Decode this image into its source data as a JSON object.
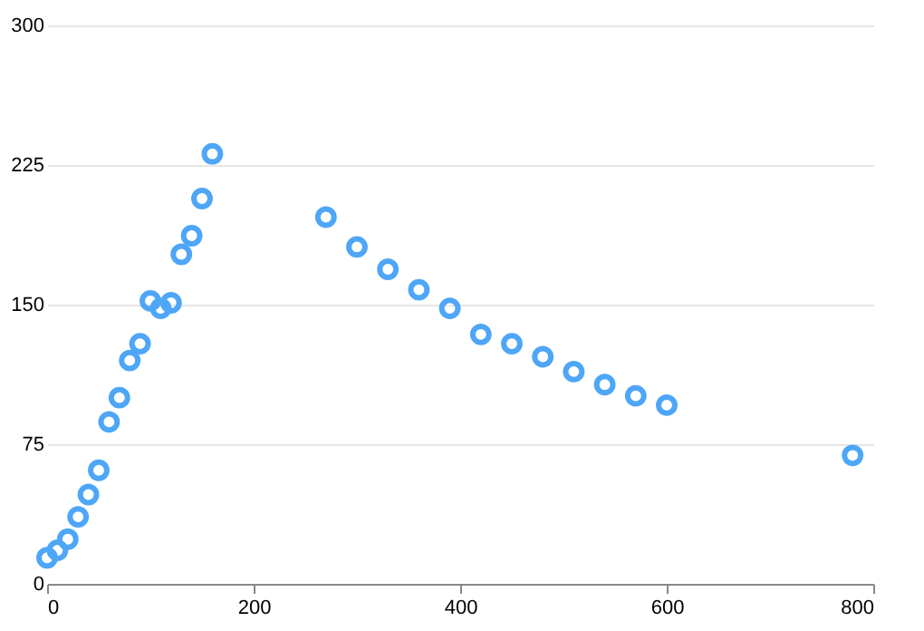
{
  "chart_data": {
    "type": "scatter",
    "marker": "circle",
    "grid": "y",
    "x": [
      0,
      10,
      20,
      30,
      40,
      50,
      60,
      70,
      80,
      90,
      100,
      110,
      120,
      130,
      140,
      150,
      160,
      270,
      300,
      330,
      360,
      390,
      420,
      450,
      480,
      510,
      540,
      570,
      600,
      780
    ],
    "series": [
      {
        "color": "#4ea6f7",
        "values": [
          14,
          18,
          24,
          36,
          48,
          61,
          87,
          100,
          120,
          129,
          152,
          148,
          151,
          177,
          187,
          207,
          231,
          197,
          181,
          169,
          158,
          148,
          134,
          129,
          122,
          114,
          107,
          101,
          96,
          69
        ]
      }
    ],
    "xlim": [
      0,
      800
    ],
    "xticks": [
      0,
      200,
      400,
      600,
      800
    ],
    "ylim": [
      0,
      300
    ],
    "yticks": [
      0,
      75,
      150,
      225,
      300
    ]
  }
}
